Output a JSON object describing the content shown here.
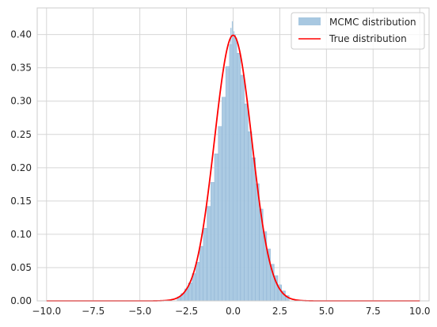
{
  "chart_data": {
    "type": "bar",
    "title": "",
    "xlabel": "",
    "ylabel": "",
    "xlim": [
      -10.5,
      10.5
    ],
    "ylim": [
      0,
      0.44
    ],
    "x_ticks": [
      -10.0,
      -7.5,
      -5.0,
      -2.5,
      0.0,
      2.5,
      5.0,
      7.5,
      10.0
    ],
    "x_tick_labels": [
      "−10.0",
      "−7.5",
      "−5.0",
      "−2.5",
      "0.0",
      "2.5",
      "5.0",
      "7.5",
      "10.0"
    ],
    "y_ticks": [
      0.0,
      0.05,
      0.1,
      0.15,
      0.2,
      0.25,
      0.3,
      0.35,
      0.4
    ],
    "y_tick_labels": [
      "0.00",
      "0.05",
      "0.10",
      "0.15",
      "0.20",
      "0.25",
      "0.30",
      "0.35",
      "0.40"
    ],
    "grid": true,
    "legend_position": "top-right",
    "legend": [
      {
        "label": "MCMC distribution",
        "kind": "patch",
        "color": "#a8c8e1"
      },
      {
        "label": "True distribution",
        "kind": "line",
        "color": "#ff0000"
      }
    ],
    "histogram": {
      "name": "MCMC distribution",
      "color": "#a8c8e1",
      "edge_color": "#86acd0",
      "bin_edges": [
        -3.0,
        -2.8,
        -2.6,
        -2.4,
        -2.2,
        -2.0,
        -1.8,
        -1.6,
        -1.4,
        -1.2,
        -1.0,
        -0.8,
        -0.6,
        -0.4,
        -0.2,
        0.0,
        0.2,
        0.4,
        0.6,
        0.8,
        1.0,
        1.2,
        1.4,
        1.6,
        1.8,
        2.0,
        2.2,
        2.4,
        2.6,
        2.8,
        3.0
      ],
      "heights": [
        0.006,
        0.011,
        0.018,
        0.027,
        0.041,
        0.058,
        0.082,
        0.109,
        0.142,
        0.178,
        0.221,
        0.262,
        0.306,
        0.352,
        0.385,
        0.395,
        0.372,
        0.339,
        0.296,
        0.254,
        0.215,
        0.176,
        0.138,
        0.104,
        0.078,
        0.055,
        0.038,
        0.024,
        0.015,
        0.008
      ]
    },
    "peak_spikes": [
      {
        "x": -0.12,
        "y": 0.41
      },
      {
        "x": -0.04,
        "y": 0.42
      },
      {
        "x": 0.04,
        "y": 0.405
      },
      {
        "x": 0.12,
        "y": 0.4
      }
    ],
    "series": [
      {
        "name": "True distribution",
        "color": "#ff0000",
        "function": "normal_pdf",
        "mean": 0,
        "std": 1,
        "x_range": [
          -10,
          10
        ]
      }
    ]
  }
}
